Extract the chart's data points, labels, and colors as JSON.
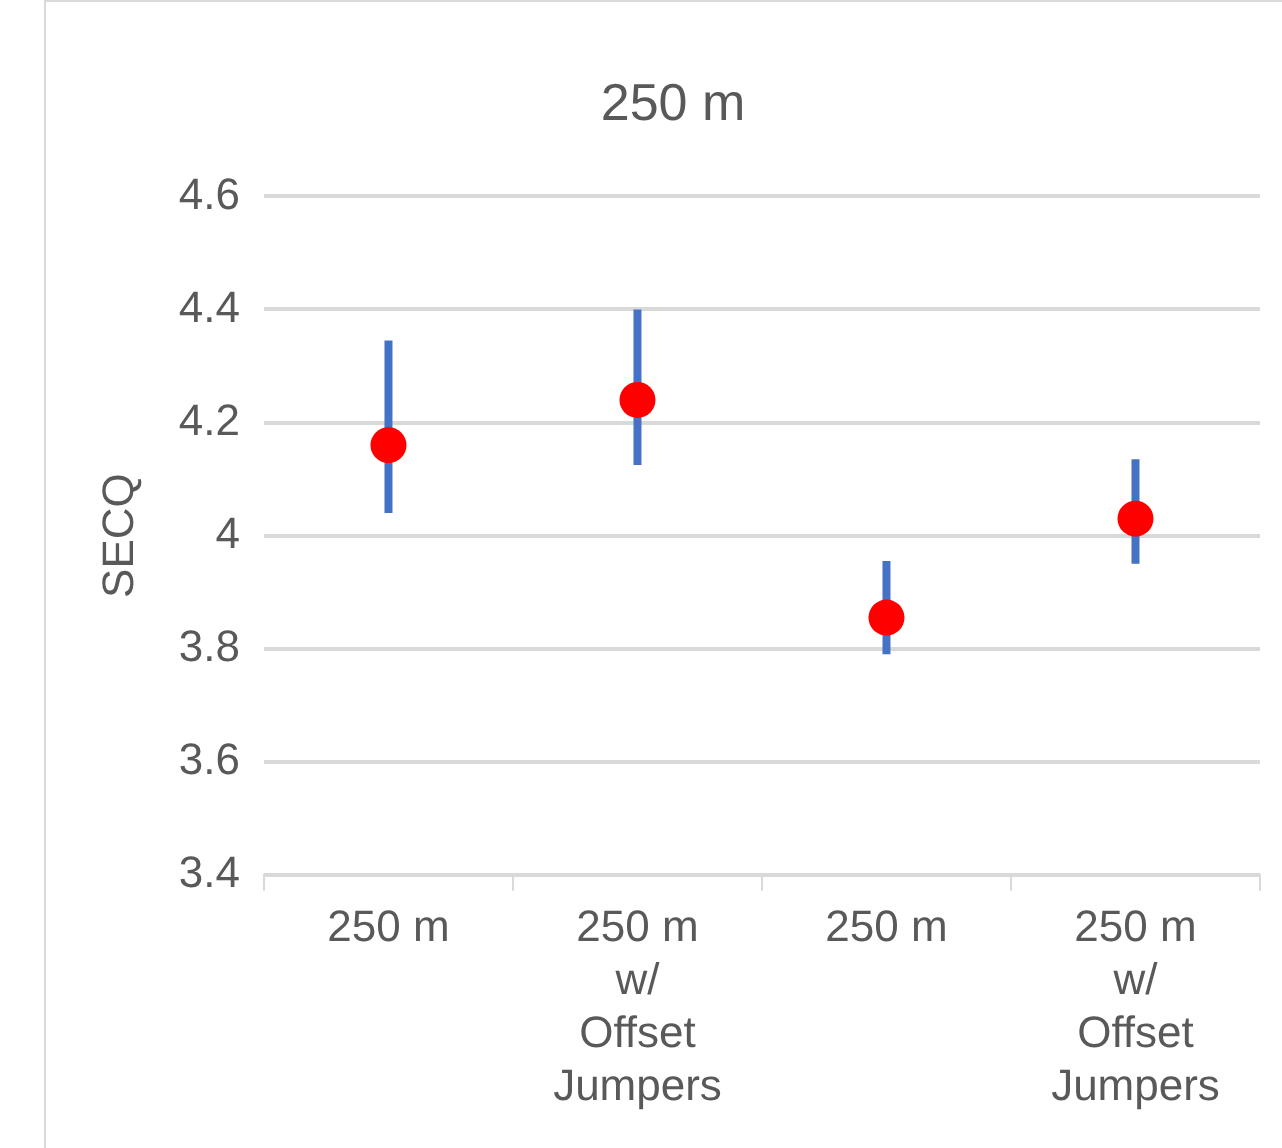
{
  "chart_data": {
    "type": "scatter",
    "title": "250 m",
    "ylabel": "SECQ",
    "categories": [
      "250 m",
      "250 m w/ Offset Jumpers",
      "250 m",
      "250 m w/ Offset Jumpers"
    ],
    "series": [
      {
        "color": "#ff0000",
        "values": [
          4.16,
          4.24,
          3.855,
          4.03
        ],
        "errors": [
          [
            4.04,
            4.345
          ],
          [
            4.125,
            4.4
          ],
          [
            3.79,
            3.955
          ],
          [
            3.95,
            4.135
          ]
        ]
      }
    ],
    "ylim": [
      3.4,
      4.6
    ],
    "yticks": [
      3.4,
      3.6,
      3.8,
      4,
      4.2,
      4.4,
      4.6
    ],
    "grid": "y",
    "marker": "circle",
    "legend": false
  }
}
